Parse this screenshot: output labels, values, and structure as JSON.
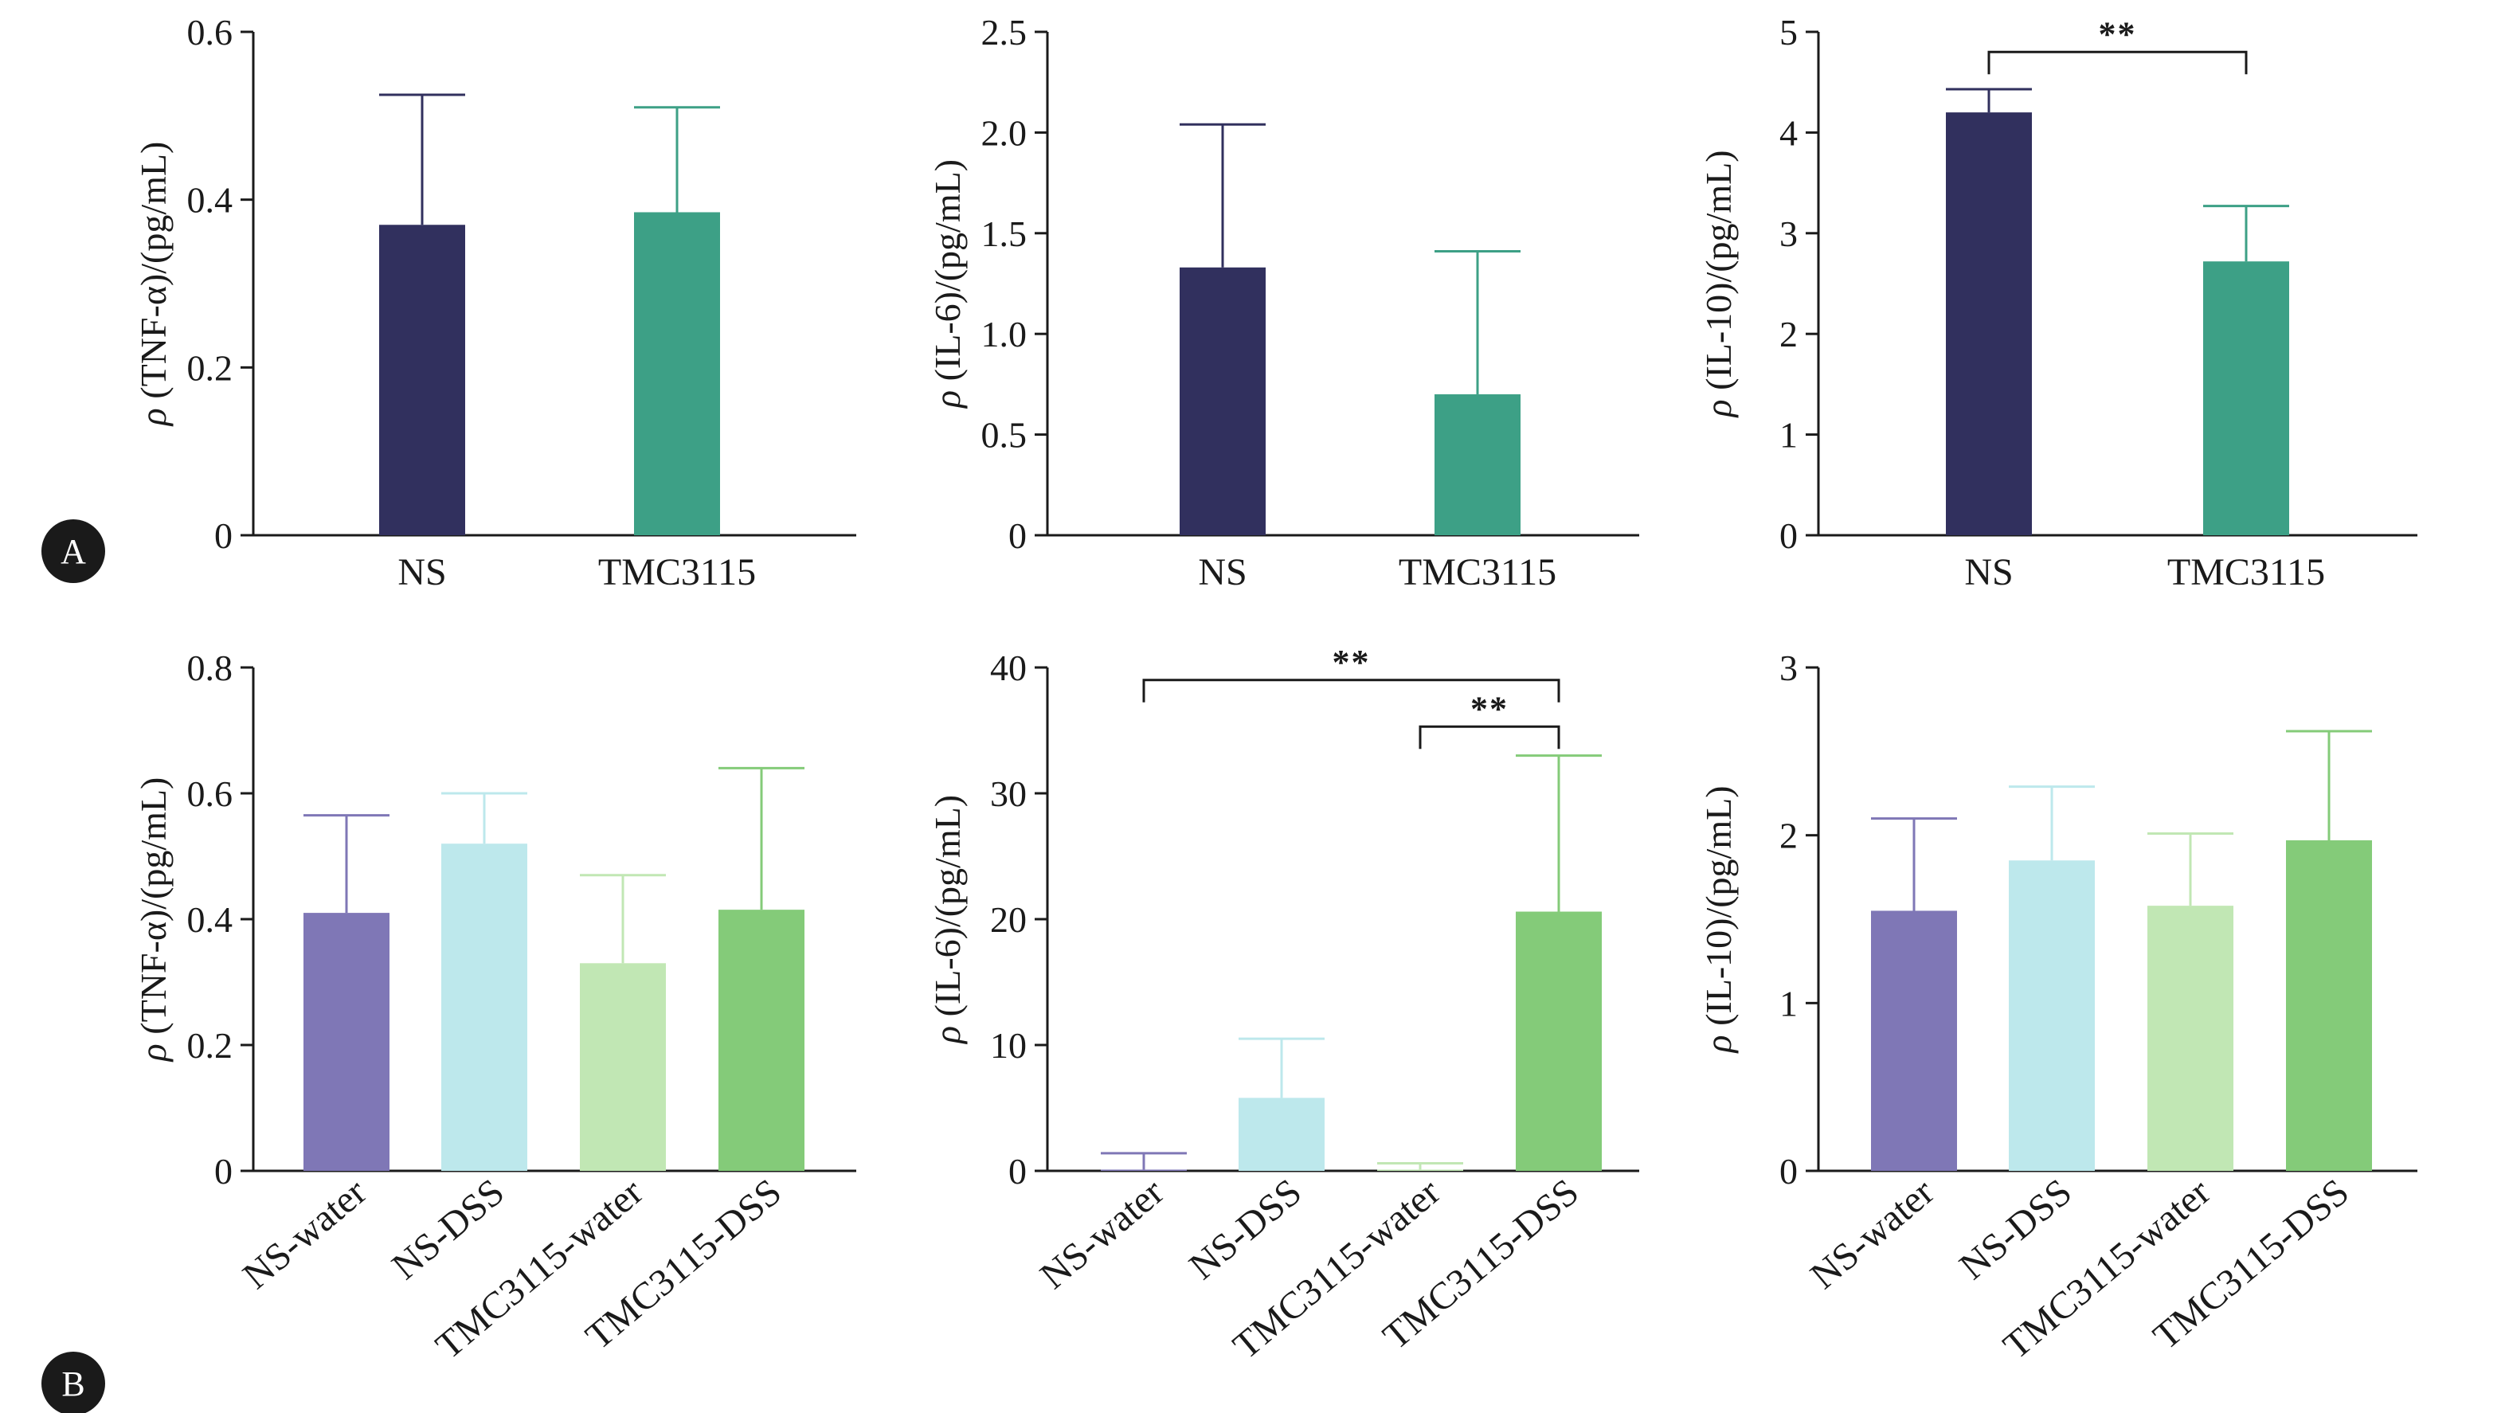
{
  "panel_labels": [
    "A",
    "B"
  ],
  "colors": {
    "NS": "#31305e",
    "TMC3115": "#3da086",
    "NS-water": "#7f77b6",
    "NS-DSS": "#bde8ec",
    "TMC3115-water": "#c1e7b4",
    "TMC3115-DSS": "#84cb79"
  },
  "chart_data": [
    {
      "id": "A-TNF",
      "type": "bar",
      "panel": "A",
      "ylabel_prefix": "ρ",
      "ylabel": " (TNF-α)/(pg/mL)",
      "categories": [
        "NS",
        "TMC3115"
      ],
      "values": [
        0.37,
        0.385
      ],
      "errors": [
        0.155,
        0.125
      ],
      "ylim": [
        0,
        0.6
      ],
      "yticks": [
        0,
        0.2,
        0.4,
        0.6
      ],
      "ytick_labels": [
        "0",
        "0.2",
        "0.4",
        "0.6"
      ],
      "significance": []
    },
    {
      "id": "A-IL6",
      "type": "bar",
      "panel": "A",
      "ylabel_prefix": "ρ",
      "ylabel": " (IL-6)/(pg/mL)",
      "categories": [
        "NS",
        "TMC3115"
      ],
      "values": [
        1.33,
        0.7
      ],
      "errors": [
        0.71,
        0.71
      ],
      "ylim": [
        0,
        2.5
      ],
      "yticks": [
        0,
        0.5,
        1.0,
        1.5,
        2.0,
        2.5
      ],
      "ytick_labels": [
        "0",
        "0.5",
        "1.0",
        "1.5",
        "2.0",
        "2.5"
      ],
      "significance": []
    },
    {
      "id": "A-IL10",
      "type": "bar",
      "panel": "A",
      "ylabel_prefix": "ρ",
      "ylabel": " (IL-10)/(pg/mL)",
      "categories": [
        "NS",
        "TMC3115"
      ],
      "values": [
        4.2,
        2.72
      ],
      "errors": [
        0.23,
        0.55
      ],
      "ylim": [
        0,
        5
      ],
      "yticks": [
        0,
        1,
        2,
        3,
        4,
        5
      ],
      "ytick_labels": [
        "0",
        "1",
        "2",
        "3",
        "4",
        "5"
      ],
      "significance": [
        {
          "from": 0,
          "to": 1,
          "y": 4.8,
          "label": "**"
        }
      ]
    },
    {
      "id": "B-TNF",
      "type": "bar",
      "panel": "B",
      "ylabel_prefix": "ρ",
      "ylabel": " (TNF-α)/(pg/mL)",
      "categories": [
        "NS-water",
        "NS-DSS",
        "TMC3115-water",
        "TMC3115-DSS"
      ],
      "values": [
        0.41,
        0.52,
        0.33,
        0.415
      ],
      "errors": [
        0.155,
        0.08,
        0.14,
        0.225
      ],
      "ylim": [
        0,
        0.8
      ],
      "yticks": [
        0,
        0.2,
        0.4,
        0.6,
        0.8
      ],
      "ytick_labels": [
        "0",
        "0.2",
        "0.4",
        "0.6",
        "0.8"
      ],
      "significance": []
    },
    {
      "id": "B-IL6",
      "type": "bar",
      "panel": "B",
      "ylabel_prefix": "ρ",
      "ylabel": " (IL-6)/(pg/mL)",
      "categories": [
        "NS-water",
        "NS-DSS",
        "TMC3115-water",
        "TMC3115-DSS"
      ],
      "values": [
        0.1,
        5.8,
        0.1,
        20.6
      ],
      "errors": [
        1.3,
        4.7,
        0.5,
        12.4
      ],
      "ylim": [
        0,
        40
      ],
      "yticks": [
        0,
        10,
        20,
        30,
        40
      ],
      "ytick_labels": [
        "0",
        "10",
        "20",
        "30",
        "40"
      ],
      "significance": [
        {
          "from": 0,
          "to": 3,
          "y": 39.0,
          "label": "**"
        },
        {
          "from": 2,
          "to": 3,
          "y": 35.3,
          "label": "**"
        }
      ]
    },
    {
      "id": "B-IL10",
      "type": "bar",
      "panel": "B",
      "ylabel_prefix": "ρ",
      "ylabel": " (IL-10)/(pg/mL)",
      "categories": [
        "NS-water",
        "NS-DSS",
        "TMC3115-water",
        "TMC3115-DSS"
      ],
      "values": [
        1.55,
        1.85,
        1.58,
        1.97
      ],
      "errors": [
        0.55,
        0.44,
        0.43,
        0.65
      ],
      "ylim": [
        0,
        3
      ],
      "yticks": [
        0,
        1,
        2,
        3
      ],
      "ytick_labels": [
        "0",
        "1",
        "2",
        "3"
      ],
      "significance": []
    }
  ]
}
